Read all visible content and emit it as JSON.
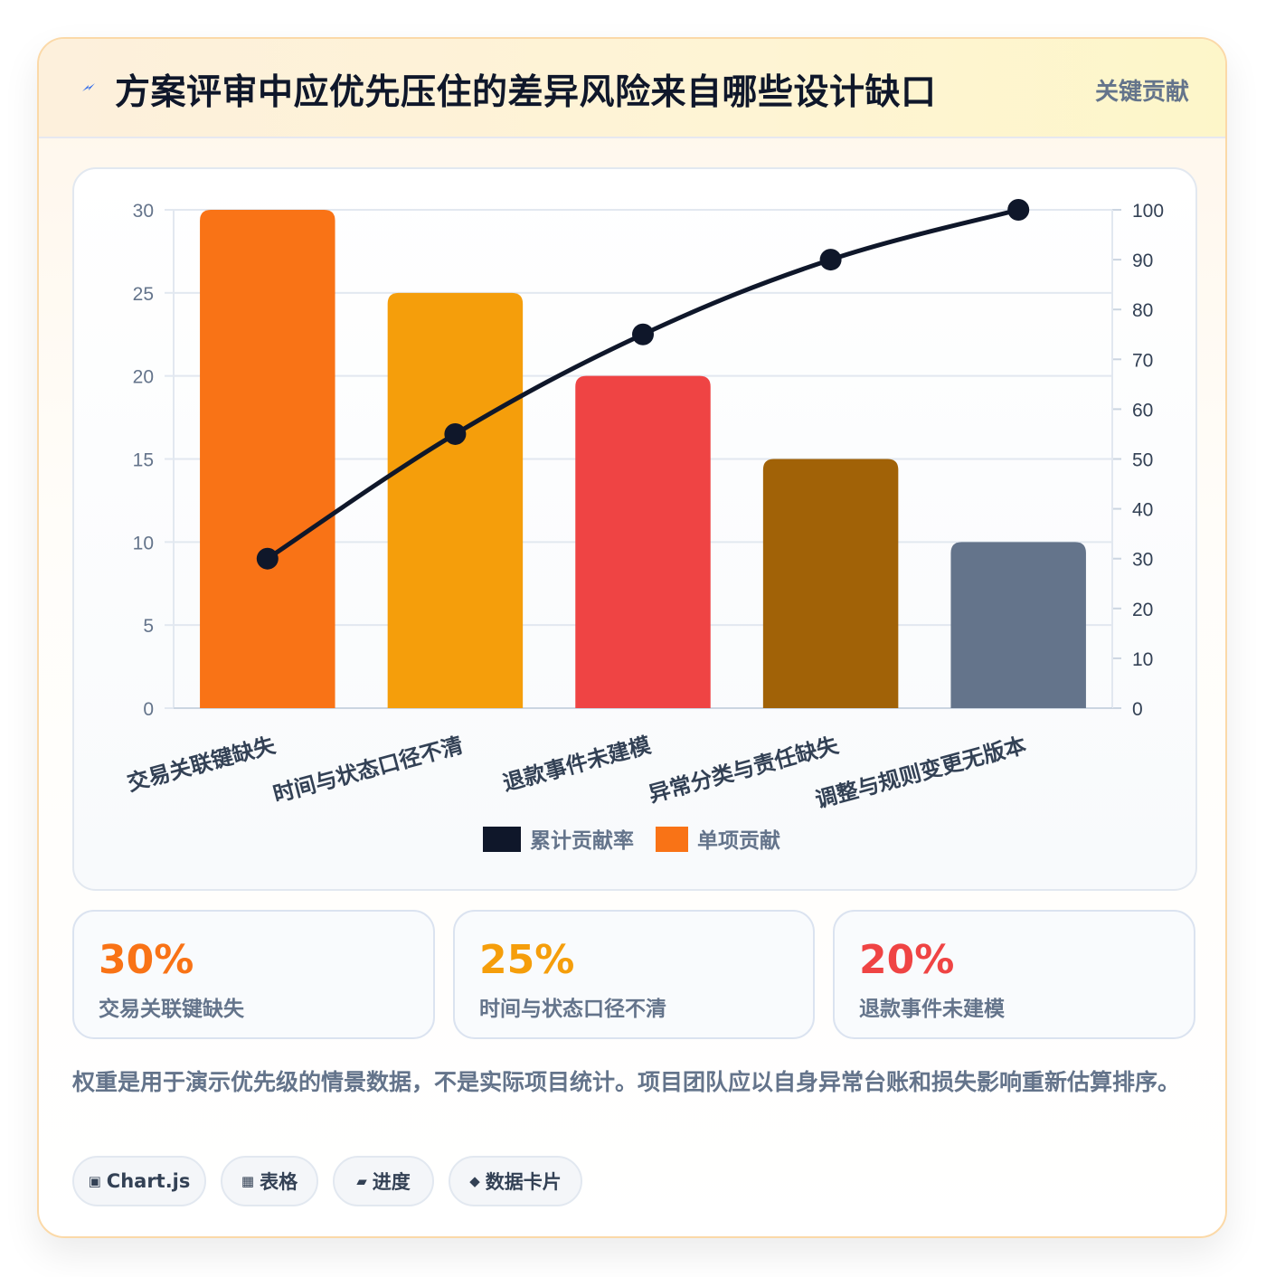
{
  "header": {
    "title": "方案评审中应优先压住的差异风险来自哪些设计缺口",
    "badge": "关键贡献",
    "icon": "lightning-icon",
    "icon_color": "#2563eb"
  },
  "chart_data": {
    "type": "bar",
    "categories": [
      "交易关联键缺失",
      "时间与状态口径不清",
      "退款事件未建模",
      "异常分类与责任缺失",
      "调整与规则变更无版本"
    ],
    "series": [
      {
        "name": "单项贡献",
        "type": "bar",
        "axis": "left",
        "values": [
          30,
          25,
          20,
          15,
          10
        ],
        "colors": [
          "#f97316",
          "#f59e0b",
          "#ef4444",
          "#a16207",
          "#64748b"
        ]
      },
      {
        "name": "累计贡献率",
        "type": "line",
        "axis": "right",
        "values": [
          30,
          55,
          75,
          90,
          100
        ],
        "color": "#0f172a"
      }
    ],
    "ylim": [
      0,
      30
    ],
    "yticks": [
      0,
      5,
      10,
      15,
      20,
      25,
      30
    ],
    "y2lim": [
      0,
      100
    ],
    "y2ticks": [
      0,
      10,
      20,
      30,
      40,
      50,
      60,
      70,
      80,
      90,
      100
    ],
    "legend": [
      "累计贡献率",
      "单项贡献"
    ],
    "legend_colors": [
      "#0f172a",
      "#f97316"
    ],
    "legend_position": "bottom",
    "grid": true
  },
  "stats": [
    {
      "value": "30%",
      "label": "交易关联键缺失",
      "color": "#f97316"
    },
    {
      "value": "25%",
      "label": "时间与状态口径不清",
      "color": "#f59e0b"
    },
    {
      "value": "20%",
      "label": "退款事件未建模",
      "color": "#ef4444"
    }
  ],
  "note": "权重是用于演示优先级的情景数据，不是实际项目统计。项目团队应以自身异常台账和损失影响重新估算排序。",
  "pills": [
    {
      "icon": "chip-icon",
      "glyph": "▣",
      "label": "Chart.js"
    },
    {
      "icon": "table-icon",
      "glyph": "▦",
      "label": "表格"
    },
    {
      "icon": "progress-icon",
      "glyph": "▰",
      "label": "进度"
    },
    {
      "icon": "diamond-icon",
      "glyph": "◆",
      "label": "数据卡片"
    }
  ]
}
